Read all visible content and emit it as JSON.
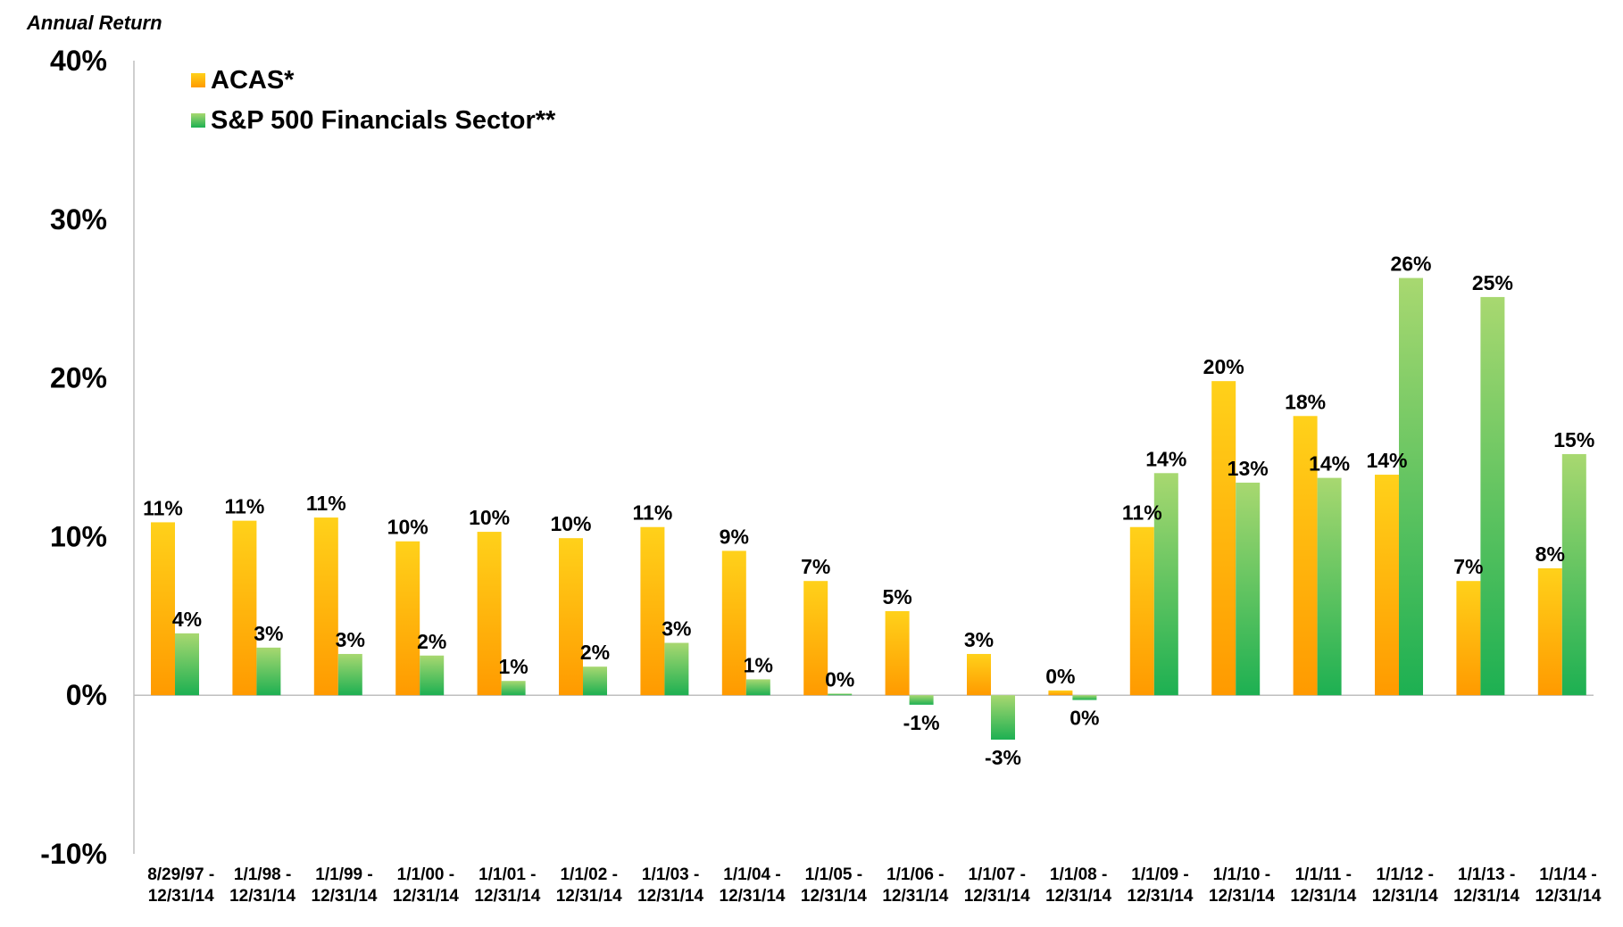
{
  "chart_data": {
    "type": "bar",
    "ylabel": "Annual Return",
    "ylim": [
      -10,
      40
    ],
    "yticks": [
      "-10%",
      "0%",
      "10%",
      "20%",
      "30%",
      "40%"
    ],
    "ytick_values": [
      -10,
      0,
      10,
      20,
      30,
      40
    ],
    "grid": false,
    "legend_position": "top-left",
    "categories": [
      [
        "8/29/97 -",
        "12/31/14"
      ],
      [
        "1/1/98 -",
        "12/31/14"
      ],
      [
        "1/1/99 -",
        "12/31/14"
      ],
      [
        "1/1/00 -",
        "12/31/14"
      ],
      [
        "1/1/01 -",
        "12/31/14"
      ],
      [
        "1/1/02 -",
        "12/31/14"
      ],
      [
        "1/1/03 -",
        "12/31/14"
      ],
      [
        "1/1/04 -",
        "12/31/14"
      ],
      [
        "1/1/05 -",
        "12/31/14"
      ],
      [
        "1/1/06 -",
        "12/31/14"
      ],
      [
        "1/1/07 -",
        "12/31/14"
      ],
      [
        "1/1/08 -",
        "12/31/14"
      ],
      [
        "1/1/09 -",
        "12/31/14"
      ],
      [
        "1/1/10 -",
        "12/31/14"
      ],
      [
        "1/1/11 -",
        "12/31/14"
      ],
      [
        "1/1/12 -",
        "12/31/14"
      ],
      [
        "1/1/13 -",
        "12/31/14"
      ],
      [
        "1/1/14 -",
        "12/31/14"
      ]
    ],
    "series": [
      {
        "name": "ACAS*",
        "color_top": "#ffd11a",
        "color_bottom": "#ff9a00",
        "values": [
          10.9,
          11.0,
          11.2,
          9.7,
          10.3,
          9.9,
          10.6,
          9.1,
          7.2,
          5.3,
          2.6,
          0.3,
          10.6,
          19.8,
          17.6,
          13.9,
          7.2,
          8.0
        ],
        "labels": [
          "11%",
          "11%",
          "11%",
          "10%",
          "10%",
          "10%",
          "11%",
          "9%",
          "7%",
          "5%",
          "3%",
          "0%",
          "11%",
          "20%",
          "18%",
          "14%",
          "7%",
          "8%"
        ]
      },
      {
        "name": "S&P 500 Financials Sector**",
        "color_top": "#a8d870",
        "color_bottom": "#1db052",
        "values": [
          3.9,
          3.0,
          2.6,
          2.5,
          0.9,
          1.8,
          3.3,
          1.0,
          0.1,
          -0.6,
          -2.8,
          -0.3,
          14.0,
          13.4,
          13.7,
          26.3,
          25.1,
          15.2
        ],
        "labels": [
          "4%",
          "3%",
          "3%",
          "2%",
          "1%",
          "2%",
          "3%",
          "1%",
          "0%",
          "-1%",
          "-3%",
          "0%",
          "14%",
          "13%",
          "14%",
          "26%",
          "25%",
          "15%"
        ]
      }
    ]
  }
}
